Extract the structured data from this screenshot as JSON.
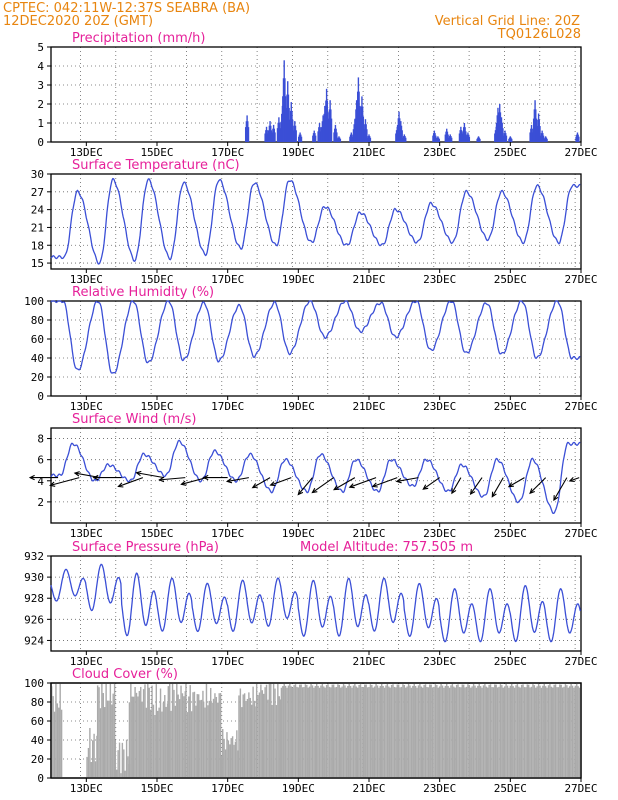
{
  "header": {
    "line1_left": "CPTEC:   042:11W-12:37S   SEABRA (BA)",
    "line2_left": "12DEC2020  20Z (GMT)",
    "line1_right": "Vertical Grid Line: 20Z",
    "line2_right": "TQ0126L028"
  },
  "colors": {
    "header": "#e8850f",
    "title": "#e6219a",
    "series": "#3b4fd6",
    "cloud": "#aaaaaa",
    "wind_arrow": "#000000"
  },
  "x_tick_labels": [
    "13DEC",
    "15DEC",
    "17DEC",
    "19DEC",
    "21DEC",
    "23DEC",
    "25DEC",
    "27DEC"
  ],
  "chart_data": [
    {
      "type": "bar",
      "title": "Precipitation (mm/h)",
      "x_start_day": 12.0,
      "x_end_day": 27.0,
      "ylim": [
        0,
        5
      ],
      "yticks": [
        0,
        1,
        2,
        3,
        4,
        5
      ],
      "events": [
        [
          17.55,
          1.4
        ],
        [
          18.1,
          0.8
        ],
        [
          18.2,
          1.1
        ],
        [
          18.3,
          0.9
        ],
        [
          18.45,
          1.3
        ],
        [
          18.55,
          1.9
        ],
        [
          18.6,
          4.3
        ],
        [
          18.7,
          3.2
        ],
        [
          18.8,
          2.1
        ],
        [
          18.9,
          1.1
        ],
        [
          19.05,
          0.5
        ],
        [
          19.45,
          0.6
        ],
        [
          19.6,
          1.0
        ],
        [
          19.7,
          1.4
        ],
        [
          19.75,
          1.9
        ],
        [
          19.8,
          2.8
        ],
        [
          19.9,
          2.2
        ],
        [
          20.05,
          0.9
        ],
        [
          20.15,
          0.3
        ],
        [
          20.5,
          0.5
        ],
        [
          20.6,
          1.2
        ],
        [
          20.65,
          2.2
        ],
        [
          20.7,
          3.4
        ],
        [
          20.8,
          2.4
        ],
        [
          20.9,
          1.2
        ],
        [
          21.0,
          0.4
        ],
        [
          21.8,
          0.8
        ],
        [
          21.85,
          1.6
        ],
        [
          21.9,
          1.1
        ],
        [
          22.0,
          0.4
        ],
        [
          22.85,
          0.6
        ],
        [
          22.95,
          0.3
        ],
        [
          23.2,
          0.7
        ],
        [
          23.3,
          0.4
        ],
        [
          23.6,
          0.8
        ],
        [
          23.7,
          1.0
        ],
        [
          23.8,
          0.5
        ],
        [
          24.1,
          0.3
        ],
        [
          24.6,
          0.8
        ],
        [
          24.65,
          1.8
        ],
        [
          24.7,
          2.0
        ],
        [
          24.75,
          1.3
        ],
        [
          24.85,
          0.6
        ],
        [
          25.0,
          0.3
        ],
        [
          25.6,
          0.9
        ],
        [
          25.7,
          2.2
        ],
        [
          25.8,
          1.5
        ],
        [
          25.9,
          0.6
        ],
        [
          26.0,
          0.3
        ],
        [
          26.9,
          0.5
        ]
      ]
    },
    {
      "type": "line",
      "title": "Surface Temperature (nC)",
      "ylim": [
        14,
        30
      ],
      "yticks": [
        15,
        18,
        21,
        24,
        27,
        30
      ],
      "days": [
        12,
        13,
        14,
        15,
        16,
        17,
        18,
        19,
        20,
        21,
        22,
        23,
        24,
        25,
        26
      ],
      "daily_max": [
        27.0,
        29.0,
        29.0,
        28.5,
        29.0,
        28.5,
        29.0,
        24.5,
        23.5,
        24.0,
        25.0,
        27.0,
        27.0,
        28.0,
        28.0
      ],
      "daily_min": [
        16.0,
        15.0,
        15.5,
        15.8,
        16.5,
        17.5,
        18.0,
        18.5,
        18.0,
        18.0,
        18.5,
        18.5,
        19.0,
        18.5,
        18.5
      ],
      "max_hour": 18,
      "min_hour": 9
    },
    {
      "type": "line",
      "title": "Relative Humidity (%)",
      "ylim": [
        0,
        100
      ],
      "yticks": [
        0,
        20,
        40,
        60,
        80,
        100
      ],
      "days": [
        12,
        13,
        14,
        15,
        16,
        17,
        18,
        19,
        20,
        21,
        22,
        23,
        24,
        25,
        26
      ],
      "daily_max": [
        100,
        100,
        100,
        100,
        98,
        95,
        98,
        100,
        100,
        98,
        100,
        100,
        98,
        100,
        100
      ],
      "daily_min": [
        27,
        23,
        35,
        38,
        37,
        42,
        45,
        62,
        68,
        62,
        48,
        45,
        44,
        40,
        40
      ],
      "min_hour": 18,
      "max_hour": 8
    },
    {
      "type": "line",
      "title": "Surface Wind (m/s)",
      "ylim": [
        0,
        9
      ],
      "yticks": [
        2,
        4,
        6,
        8
      ],
      "days": [
        12,
        13,
        14,
        15,
        16,
        17,
        18,
        19,
        20,
        21,
        22,
        23,
        24,
        25,
        26
      ],
      "daily_max": [
        7.5,
        5.5,
        6.5,
        7.7,
        6.8,
        6.5,
        6.0,
        6.5,
        6.0,
        6.0,
        6.0,
        5.5,
        6.0,
        6.0,
        7.5
      ],
      "daily_min": [
        4.5,
        4.0,
        4.0,
        4.5,
        4.0,
        4.0,
        3.0,
        3.0,
        3.0,
        3.0,
        3.5,
        3.0,
        2.5,
        2.0,
        1.0
      ],
      "arrows_day": [
        12.2,
        12.8,
        13.4,
        14.0,
        14.6,
        15.2,
        15.8,
        16.4,
        17.0,
        17.6,
        18.2,
        18.8,
        19.4,
        20.0,
        20.6,
        21.2,
        21.8,
        22.4,
        23.0,
        23.6,
        24.2,
        24.8,
        25.4,
        26.0,
        26.6,
        26.95
      ],
      "arrows_dir_deg": [
        180,
        195,
        170,
        180,
        200,
        170,
        185,
        195,
        180,
        190,
        210,
        200,
        230,
        215,
        210,
        200,
        200,
        190,
        215,
        240,
        235,
        240,
        210,
        225,
        240,
        200
      ],
      "arrows_len": [
        28,
        30,
        26,
        28,
        26,
        28,
        26,
        26,
        24,
        22,
        20,
        22,
        22,
        26,
        24,
        28,
        26,
        22,
        20,
        18,
        20,
        22,
        18,
        22,
        26,
        10
      ]
    },
    {
      "type": "line",
      "title": "Surface Pressure (hPa)",
      "subtitle": "Model Altitude: 757.505 m",
      "ylim": [
        923,
        932
      ],
      "yticks": [
        924,
        926,
        928,
        930,
        932
      ],
      "days": [
        12,
        13,
        14,
        15,
        16,
        17,
        18,
        19,
        20,
        21,
        22,
        23,
        24,
        25,
        26
      ],
      "daily_max": [
        930.8,
        931.3,
        930.5,
        930.0,
        929.5,
        929.8,
        930.0,
        929.8,
        930.0,
        930.0,
        929.5,
        929.0,
        929.0,
        929.3,
        929.0
      ],
      "daily_min": [
        927.5,
        926.5,
        924.0,
        924.5,
        924.5,
        924.5,
        925.0,
        924.0,
        924.0,
        924.5,
        924.0,
        923.5,
        923.5,
        923.5,
        923.5
      ],
      "max_hour": 12,
      "min_hour": 20
    },
    {
      "type": "area",
      "title": "Cloud Cover (%)",
      "ylim": [
        0,
        100
      ],
      "yticks": [
        0,
        20,
        40,
        60,
        80,
        100
      ],
      "segments": [
        [
          12.0,
          12.3,
          85
        ],
        [
          12.3,
          12.7,
          0
        ],
        [
          12.7,
          13.0,
          0
        ],
        [
          13.0,
          13.3,
          35
        ],
        [
          13.3,
          13.8,
          90
        ],
        [
          13.8,
          14.2,
          25
        ],
        [
          14.2,
          14.8,
          90
        ],
        [
          14.8,
          15.3,
          80
        ],
        [
          15.3,
          15.8,
          90
        ],
        [
          15.8,
          16.3,
          85
        ],
        [
          16.3,
          16.8,
          85
        ],
        [
          16.8,
          17.3,
          40
        ],
        [
          17.3,
          17.8,
          85
        ],
        [
          17.8,
          18.5,
          93
        ],
        [
          18.5,
          27.0,
          97
        ]
      ]
    }
  ]
}
